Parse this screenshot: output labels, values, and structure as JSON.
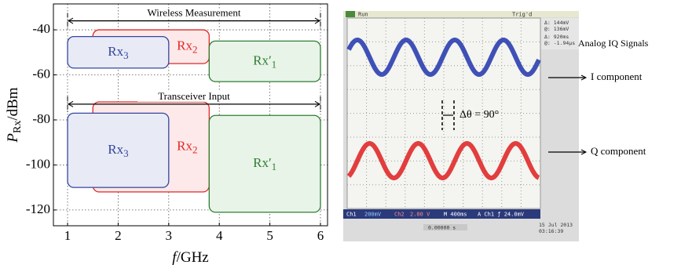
{
  "chart_data": {
    "type": "region",
    "x_label": {
      "main": "f",
      "unit": "/GHz"
    },
    "y_label": {
      "main": "P",
      "sub": "Rx",
      "unit": "/dBm"
    },
    "xlim": [
      0.72,
      6.14
    ],
    "ylim": [
      -127,
      -28.5
    ],
    "xticks": [
      1,
      2,
      3,
      4,
      5,
      6
    ],
    "yticks": [
      -40,
      -60,
      -80,
      -100,
      -120
    ],
    "grid": true,
    "annotations": [
      {
        "text": "Wireless Measurement",
        "x": [
          1,
          6
        ],
        "y": -36
      },
      {
        "text": "Transceiver Input",
        "x": [
          1,
          6
        ],
        "y": -73
      }
    ],
    "series": [
      {
        "name": "Rx",
        "sub": "2",
        "color": "#e02828",
        "fill": "#fde9e9",
        "x": [
          1.5,
          3.8
        ],
        "y": [
          -55,
          -40
        ]
      },
      {
        "name": "Rx",
        "sub": "3",
        "color": "#34479c",
        "fill": "#e8eaf6",
        "x": [
          1,
          3
        ],
        "y": [
          -57,
          -43
        ]
      },
      {
        "name": "Rx′",
        "sub": "1",
        "color": "#2e7d32",
        "fill": "#e9f4e9",
        "x": [
          3.8,
          6
        ],
        "y": [
          -63,
          -45
        ]
      },
      {
        "name": "Rx",
        "sub": "2",
        "color": "#e02828",
        "fill": "#fde9e9",
        "x": [
          1.5,
          3.8
        ],
        "y": [
          -112,
          -72
        ]
      },
      {
        "name": "Rx",
        "sub": "3",
        "color": "#34479c",
        "fill": "#e8eaf6",
        "x": [
          1,
          3
        ],
        "y": [
          -110,
          -77
        ]
      },
      {
        "name": "Rx′",
        "sub": "1",
        "color": "#2e7d32",
        "fill": "#e9f4e9",
        "x": [
          3.8,
          6
        ],
        "y": [
          -121,
          -78
        ]
      }
    ]
  },
  "scope": {
    "status": "Run",
    "trigger": "Trig'd",
    "readouts": [
      "Δ: 144mV",
      "@: 136mV",
      "Δ: 920ms",
      "@: -1.94µs"
    ],
    "bottom": [
      "Ch1",
      "200mV",
      "Ch2",
      "2.00 V",
      "M 400ms",
      "A  Ch1  ƒ  24.0mV"
    ],
    "date": [
      "15 Jul  2013",
      "03:16:39"
    ],
    "position": "0.00000 s",
    "phase": "Δθ = 90°",
    "title": "Analog IQ Signals",
    "i_label": "I component",
    "q_label": "Q component"
  }
}
